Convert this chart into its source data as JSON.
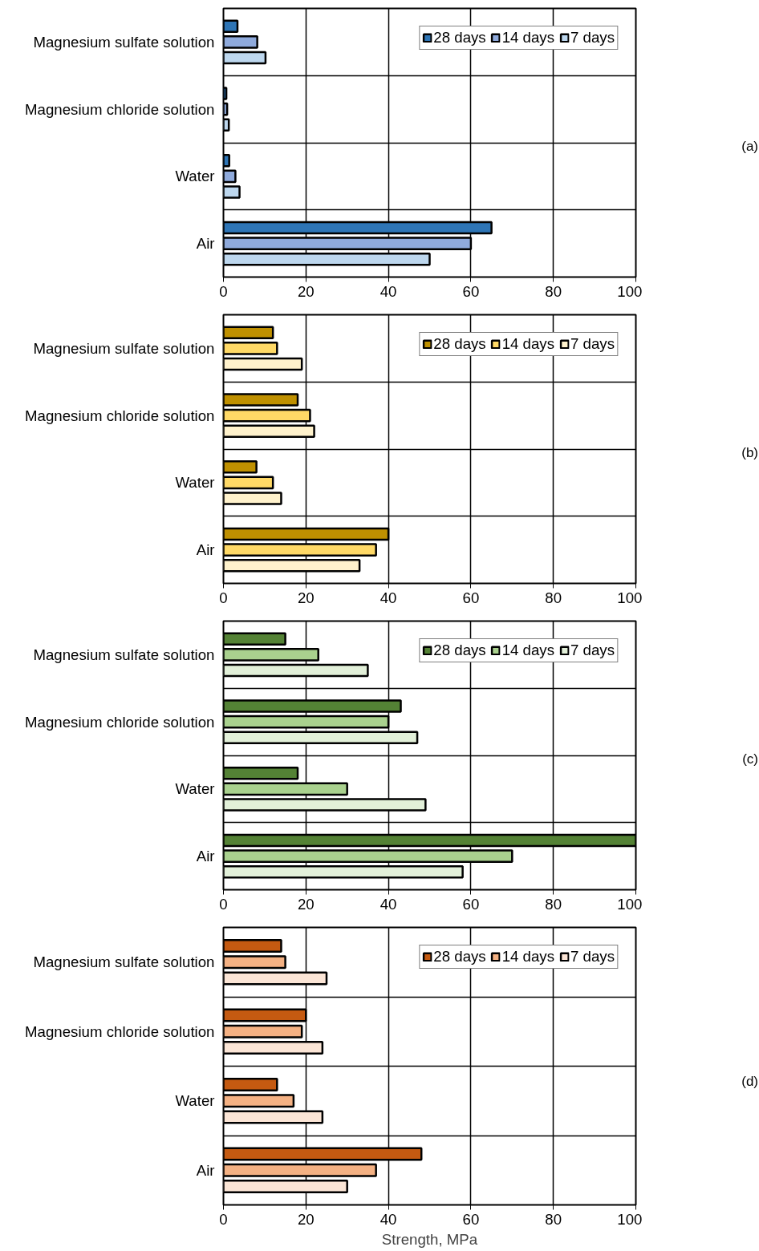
{
  "chart_data": [
    {
      "type": "bar",
      "orientation": "horizontal",
      "categories": [
        "Magnesium sulfate solution",
        "Magnesium chloride solution",
        "Water",
        "Air"
      ],
      "series": [
        {
          "name": "28 days",
          "color": "#2e75b6",
          "values": [
            3.4,
            0.7,
            1.4,
            65
          ]
        },
        {
          "name": "14 days",
          "color": "#8faadc",
          "values": [
            8.2,
            0.9,
            2.9,
            60
          ]
        },
        {
          "name": "7 days",
          "color": "#bdd7ee",
          "values": [
            10.2,
            1.3,
            3.9,
            50
          ]
        }
      ],
      "xlim": [
        0,
        100
      ],
      "xticks": [
        0,
        20,
        40,
        60,
        80,
        100
      ],
      "grid": true,
      "legend": "top right",
      "annotations": [
        "(a)"
      ]
    },
    {
      "type": "bar",
      "orientation": "horizontal",
      "categories": [
        "Magnesium sulfate solution",
        "Magnesium chloride solution",
        "Water",
        "Air"
      ],
      "series": [
        {
          "name": "28 days",
          "color": "#bf9000",
          "values": [
            12,
            18,
            8,
            40
          ]
        },
        {
          "name": "14 days",
          "color": "#ffd966",
          "values": [
            13,
            21,
            12,
            37
          ]
        },
        {
          "name": "7 days",
          "color": "#fff2cc",
          "values": [
            19,
            22,
            14,
            33
          ]
        }
      ],
      "xlim": [
        0,
        100
      ],
      "xticks": [
        0,
        20,
        40,
        60,
        80,
        100
      ],
      "grid": true,
      "legend": "top right",
      "annotations": [
        "(b)"
      ]
    },
    {
      "type": "bar",
      "orientation": "horizontal",
      "categories": [
        "Magnesium sulfate solution",
        "Magnesium chloride solution",
        "Water",
        "Air"
      ],
      "series": [
        {
          "name": "28 days",
          "color": "#548235",
          "values": [
            15,
            43,
            18,
            100
          ]
        },
        {
          "name": "14 days",
          "color": "#a9d18e",
          "values": [
            23,
            40,
            30,
            70
          ]
        },
        {
          "name": "7 days",
          "color": "#e2f0d9",
          "values": [
            35,
            47,
            49,
            58
          ]
        }
      ],
      "xlim": [
        0,
        100
      ],
      "xticks": [
        0,
        20,
        40,
        60,
        80,
        100
      ],
      "grid": true,
      "legend": "top right",
      "annotations": [
        "(c)"
      ]
    },
    {
      "type": "bar",
      "orientation": "horizontal",
      "categories": [
        "Magnesium sulfate solution",
        "Magnesium chloride solution",
        "Water",
        "Air"
      ],
      "series": [
        {
          "name": "28 days",
          "color": "#c55a11",
          "values": [
            14,
            20,
            13,
            48
          ]
        },
        {
          "name": "14 days",
          "color": "#f4b183",
          "values": [
            15,
            19,
            17,
            37
          ]
        },
        {
          "name": "7 days",
          "color": "#fbe5d6",
          "values": [
            25,
            24,
            24,
            30
          ]
        }
      ],
      "xlim": [
        0,
        100
      ],
      "xticks": [
        0,
        20,
        40,
        60,
        80,
        100
      ],
      "grid": true,
      "legend": "top right",
      "xlabel": "Strength, MPa",
      "annotations": [
        "(d)"
      ]
    }
  ]
}
